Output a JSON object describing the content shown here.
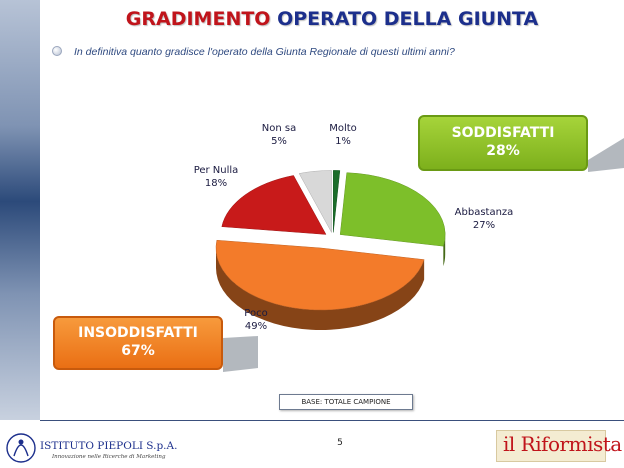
{
  "header": {
    "title_red": "GRADIMENTO",
    "title_blue": "OPERATO DELLA GIUNTA",
    "question": "In definitiva quanto gradisce l'operato della Giunta Regionale di questi ultimi anni?"
  },
  "chart_data": {
    "type": "pie",
    "slices": [
      {
        "name": "Molto",
        "value": 1,
        "label": "1%",
        "color": "#1b6d2a"
      },
      {
        "name": "Abbastanza",
        "value": 27,
        "label": "27%",
        "color": "#7dbf2a"
      },
      {
        "name": "Poco",
        "value": 49,
        "label": "49%",
        "color": "#f37b2a"
      },
      {
        "name": "Per Nulla",
        "value": 18,
        "label": "18%",
        "color": "#c81a1a"
      },
      {
        "name": "Non sa",
        "value": 5,
        "label": "5%",
        "color": "#d8d8d8"
      }
    ],
    "groups": {
      "soddisfatti": {
        "label": "SODDISFATTI",
        "value": "28%",
        "color": "#8cc32a"
      },
      "insoddisfatti": {
        "label": "INSODDISFATTI",
        "value": "67%",
        "color": "#f07a22"
      }
    }
  },
  "base_note": "BASE: TOTALE CAMPIONE",
  "page_number": "5",
  "logos": {
    "piepoli_name": "ISTITUTO PIEPOLI S.p.A.",
    "piepoli_tagline": "Innovazione nelle Ricerche di Marketing",
    "riformista": "il Riformista"
  }
}
